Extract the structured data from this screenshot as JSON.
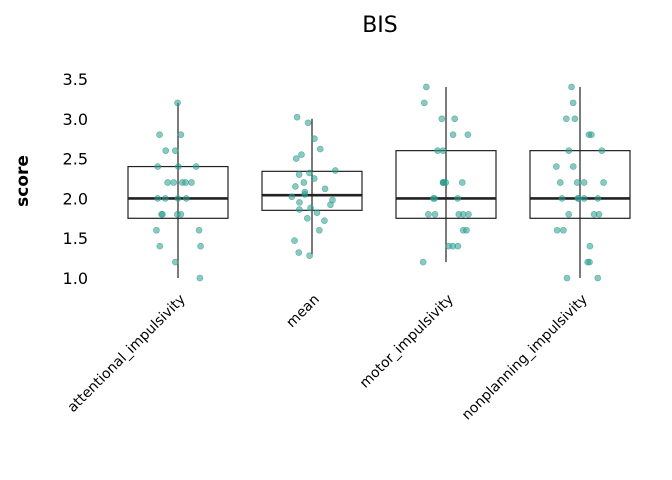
{
  "chart_data": {
    "type": "boxplot",
    "title": "BIS",
    "xlabel": "",
    "ylabel": "score",
    "ylim": [
      0.95,
      3.5
    ],
    "yticks": [
      "1.0",
      "1.5",
      "2.0",
      "2.5",
      "3.0",
      "3.5"
    ],
    "grid": false,
    "point_color": "#2a9d8f",
    "categories": [
      "attentional_impulsivity",
      "mean",
      "motor_impulsivity",
      "nonplanning_impulsivity"
    ],
    "boxes": [
      {
        "category": "attentional_impulsivity",
        "whisker_low": 1.0,
        "q1": 1.75,
        "median": 2.0,
        "q3": 2.4,
        "whisker_high": 3.2
      },
      {
        "category": "mean",
        "whisker_low": 1.3,
        "q1": 1.85,
        "median": 2.04,
        "q3": 2.34,
        "whisker_high": 3.0
      },
      {
        "category": "motor_impulsivity",
        "whisker_low": 1.2,
        "q1": 1.75,
        "median": 2.0,
        "q3": 2.6,
        "whisker_high": 3.4
      },
      {
        "category": "nonplanning_impulsivity",
        "whisker_low": 1.0,
        "q1": 1.75,
        "median": 2.0,
        "q3": 2.6,
        "whisker_high": 3.4
      }
    ],
    "points": [
      {
        "category": "attentional_impulsivity",
        "values": [
          3.2,
          2.8,
          2.8,
          2.6,
          2.6,
          2.4,
          2.4,
          2.4,
          2.2,
          2.2,
          2.2,
          2.2,
          2.2,
          2.0,
          2.0,
          2.0,
          2.0,
          1.8,
          1.8,
          1.8,
          1.8,
          1.6,
          1.6,
          1.4,
          1.4,
          1.2,
          1.0
        ]
      },
      {
        "category": "mean",
        "values": [
          3.02,
          2.95,
          2.75,
          2.62,
          2.55,
          2.5,
          2.35,
          2.32,
          2.3,
          2.25,
          2.2,
          2.15,
          2.12,
          2.08,
          2.05,
          2.02,
          1.98,
          1.95,
          1.92,
          1.88,
          1.86,
          1.82,
          1.75,
          1.72,
          1.6,
          1.47,
          1.32,
          1.28
        ]
      },
      {
        "category": "motor_impulsivity",
        "values": [
          3.4,
          3.2,
          3.0,
          3.0,
          2.8,
          2.8,
          2.6,
          2.6,
          2.2,
          2.2,
          2.2,
          2.2,
          2.2,
          2.0,
          2.0,
          2.0,
          1.8,
          1.8,
          1.8,
          1.8,
          1.8,
          1.6,
          1.6,
          1.4,
          1.4,
          1.4,
          1.2
        ]
      },
      {
        "category": "nonplanning_impulsivity",
        "values": [
          3.4,
          3.2,
          3.0,
          3.0,
          2.8,
          2.8,
          2.6,
          2.6,
          2.4,
          2.4,
          2.2,
          2.2,
          2.2,
          2.2,
          2.0,
          2.0,
          2.0,
          2.0,
          2.0,
          1.8,
          1.8,
          1.8,
          1.6,
          1.6,
          1.4,
          1.2,
          1.2,
          1.0,
          1.0
        ]
      }
    ]
  }
}
